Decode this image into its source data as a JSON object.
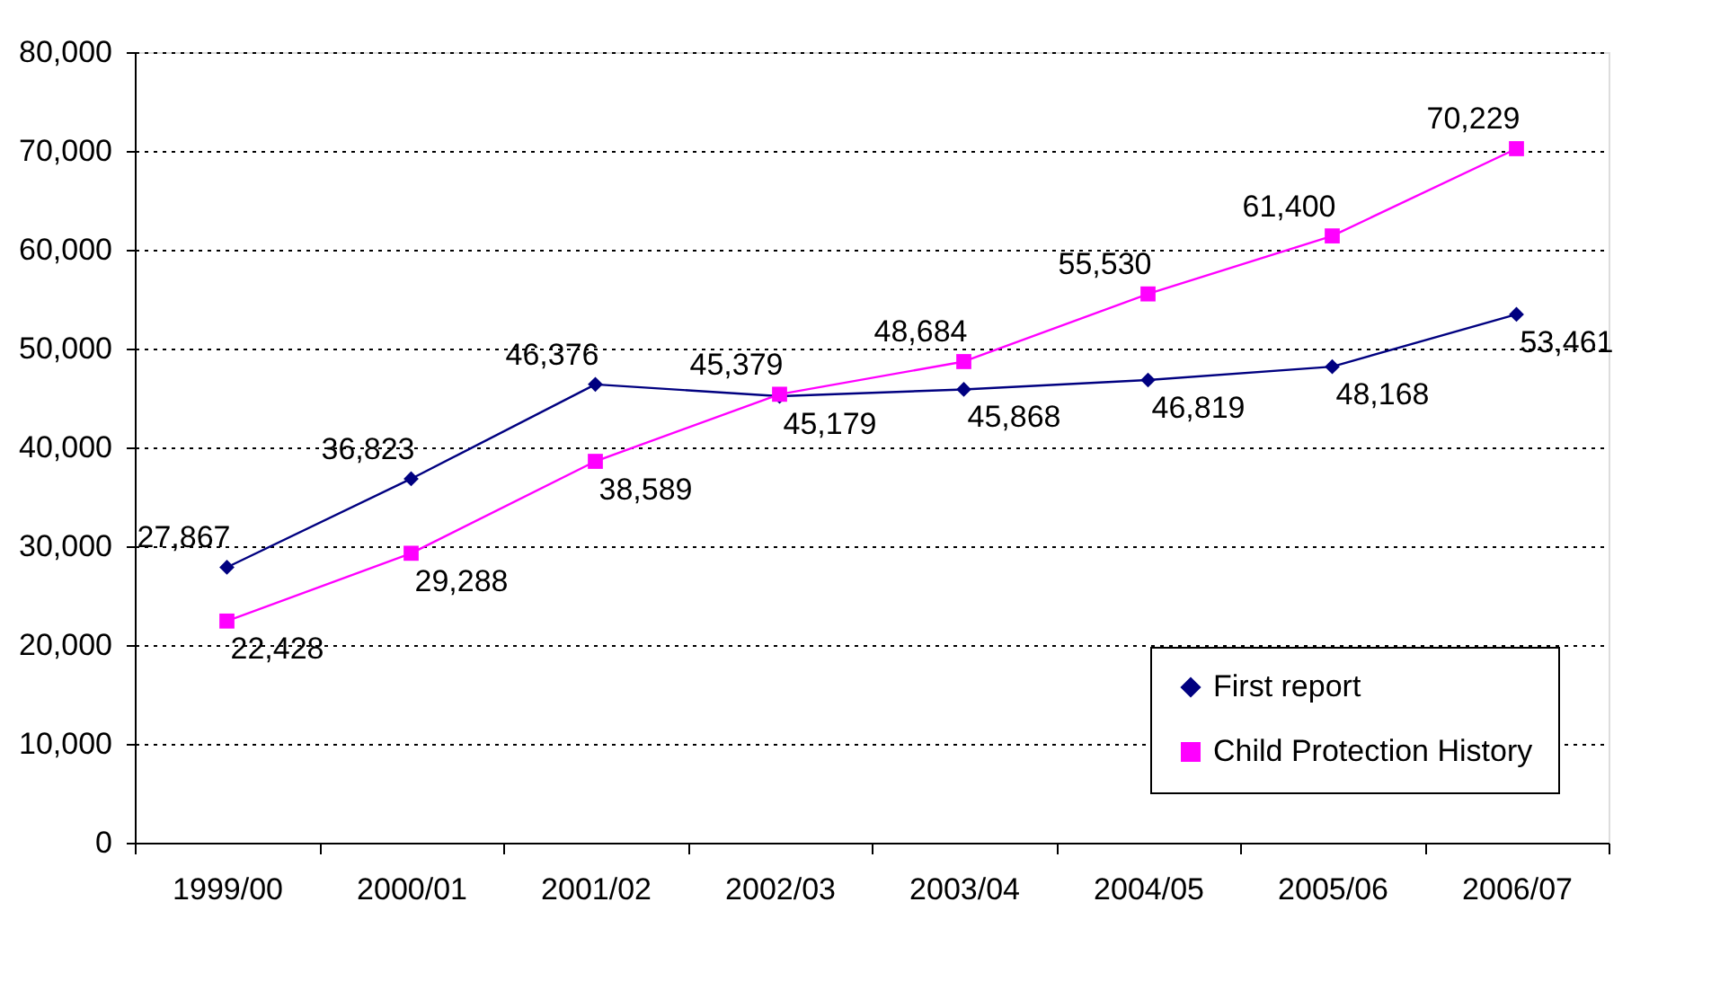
{
  "chart_data": {
    "type": "line",
    "categories": [
      "1999/00",
      "2000/01",
      "2001/02",
      "2002/03",
      "2003/04",
      "2004/05",
      "2005/06",
      "2006/07"
    ],
    "series": [
      {
        "name": "First report",
        "color": "#000080",
        "marker": "diamond",
        "values": [
          27867,
          36823,
          46376,
          45179,
          45868,
          46819,
          48168,
          53461
        ],
        "value_labels": [
          "27,867",
          "36,823",
          "46,376",
          "45,179",
          "45,868",
          "46,819",
          "48,168",
          "53,461"
        ]
      },
      {
        "name": "Child Protection History",
        "color": "#ff00ff",
        "marker": "square",
        "values": [
          22428,
          29288,
          38589,
          45379,
          48684,
          55530,
          61400,
          70229
        ],
        "value_labels": [
          "22,428",
          "29,288",
          "38,589",
          "45,379",
          "48,684",
          "55,530",
          "61,400",
          "70,229"
        ]
      }
    ],
    "ylim": [
      0,
      80000
    ],
    "yticks": [
      0,
      {
        "value": 10000,
        "label": "10,000"
      },
      {
        "value": 20000,
        "label": "20,000"
      },
      {
        "value": 30000,
        "label": "30,000"
      },
      {
        "value": 40000,
        "label": "40,000"
      },
      {
        "value": 50000,
        "label": "50,000"
      },
      {
        "value": 60000,
        "label": "60,000"
      },
      {
        "value": 70000,
        "label": "70,000"
      },
      {
        "value": 80000,
        "label": "80,000"
      }
    ],
    "grid": "y",
    "line_style": "solid",
    "legend": "bottom right"
  }
}
